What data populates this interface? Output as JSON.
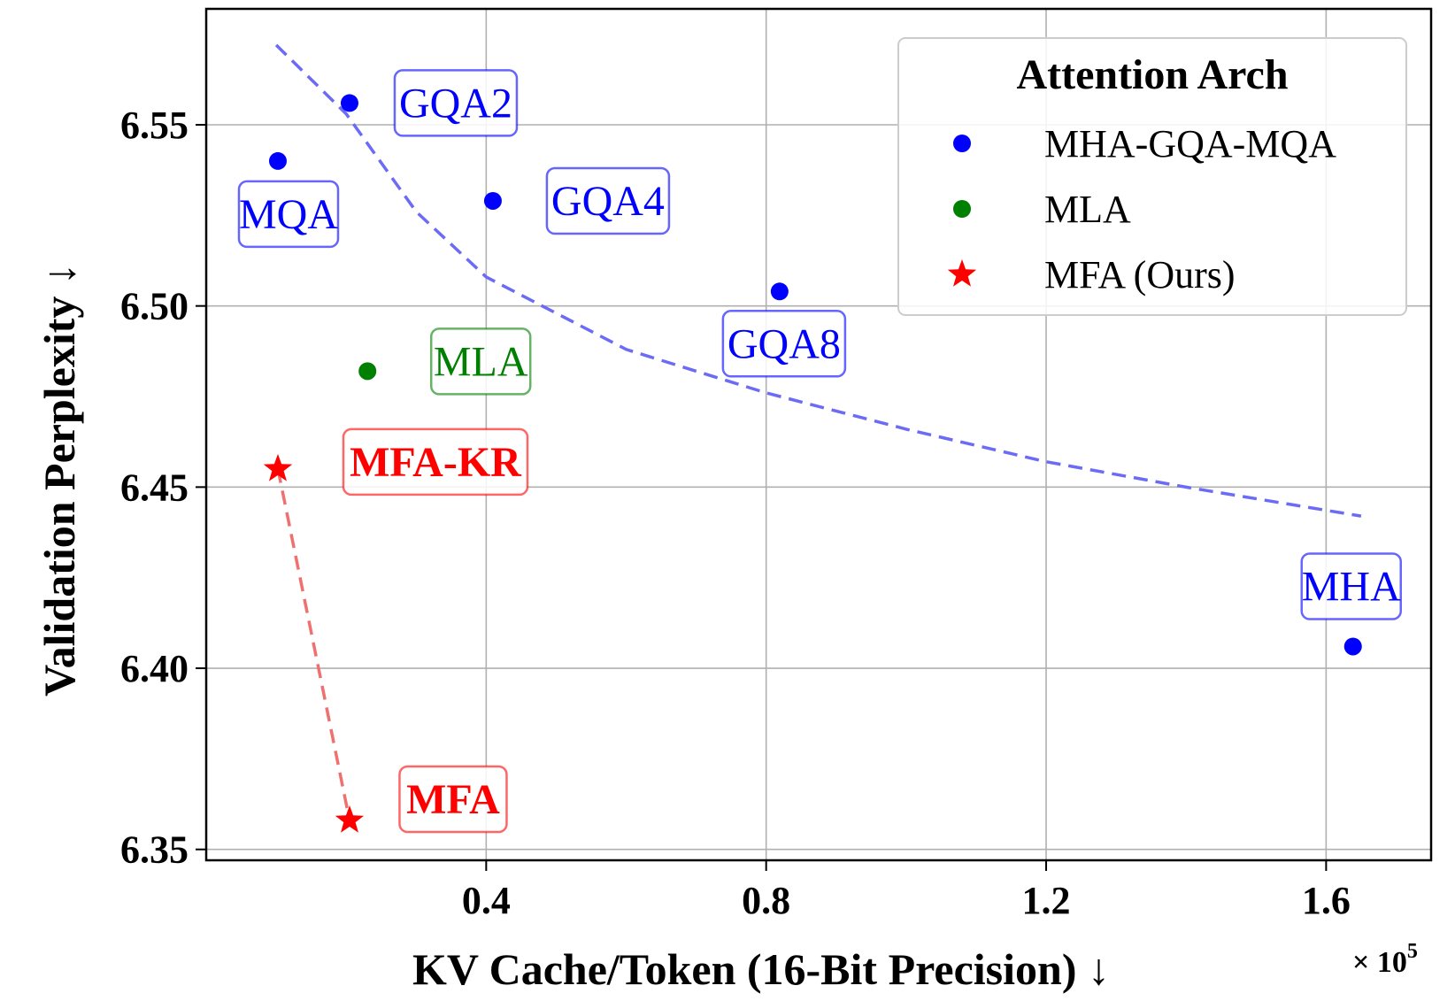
{
  "chart_data": {
    "type": "scatter",
    "xlabel": "KV Cache/Token (16-Bit Precision) ↓",
    "ylabel": "Validation Perplexity ↓",
    "x_offset_label": "× 10",
    "x_offset_exponent": "5",
    "x_scale": 100000,
    "xlim": [
      0,
      175000
    ],
    "ylim": [
      6.347,
      6.582
    ],
    "xticks": [
      40000,
      80000,
      120000,
      160000
    ],
    "xtick_labels": [
      "0.4",
      "0.8",
      "1.2",
      "1.6"
    ],
    "yticks": [
      6.35,
      6.4,
      6.45,
      6.5,
      6.55
    ],
    "ytick_labels": [
      "6.35",
      "6.40",
      "6.45",
      "6.50",
      "6.55"
    ],
    "grid": true,
    "legend": {
      "title": "Attention Arch",
      "position": "top-right",
      "entries": [
        {
          "label": "MHA-GQA-MQA",
          "color": "#0000ff",
          "marker": "circle"
        },
        {
          "label": "MLA",
          "color": "#008000",
          "marker": "circle"
        },
        {
          "label": "MFA (Ours)",
          "color": "#ff0000",
          "marker": "star"
        }
      ]
    },
    "series": [
      {
        "name": "MHA-GQA-MQA",
        "color": "#0000ff",
        "marker": "circle",
        "points": [
          {
            "label": "MQA",
            "x": 10240,
            "y": 6.54
          },
          {
            "label": "GQA2",
            "x": 20480,
            "y": 6.556
          },
          {
            "label": "GQA4",
            "x": 40960,
            "y": 6.529
          },
          {
            "label": "GQA8",
            "x": 81920,
            "y": 6.504
          },
          {
            "label": "MHA",
            "x": 163840,
            "y": 6.406
          }
        ]
      },
      {
        "name": "MLA",
        "color": "#008000",
        "marker": "circle",
        "points": [
          {
            "label": "MLA",
            "x": 23040,
            "y": 6.482
          }
        ]
      },
      {
        "name": "MFA (Ours)",
        "color": "#ff0000",
        "marker": "star",
        "points": [
          {
            "label": "MFA-KR",
            "x": 10240,
            "y": 6.455,
            "bold": true
          },
          {
            "label": "MFA",
            "x": 20480,
            "y": 6.358,
            "bold": true
          }
        ]
      }
    ],
    "trend_lines": [
      {
        "color": "#6b6bf5",
        "style": "dashed",
        "x": [
          10000,
          20000,
          30000,
          40000,
          60000,
          80000,
          100000,
          120000,
          140000,
          165000
        ],
        "y": [
          6.572,
          6.553,
          6.526,
          6.508,
          6.488,
          6.476,
          6.466,
          6.457,
          6.45,
          6.442
        ]
      },
      {
        "color": "#f07070",
        "style": "dashed",
        "x": [
          10240,
          20480
        ],
        "y": [
          6.455,
          6.358
        ]
      }
    ]
  }
}
